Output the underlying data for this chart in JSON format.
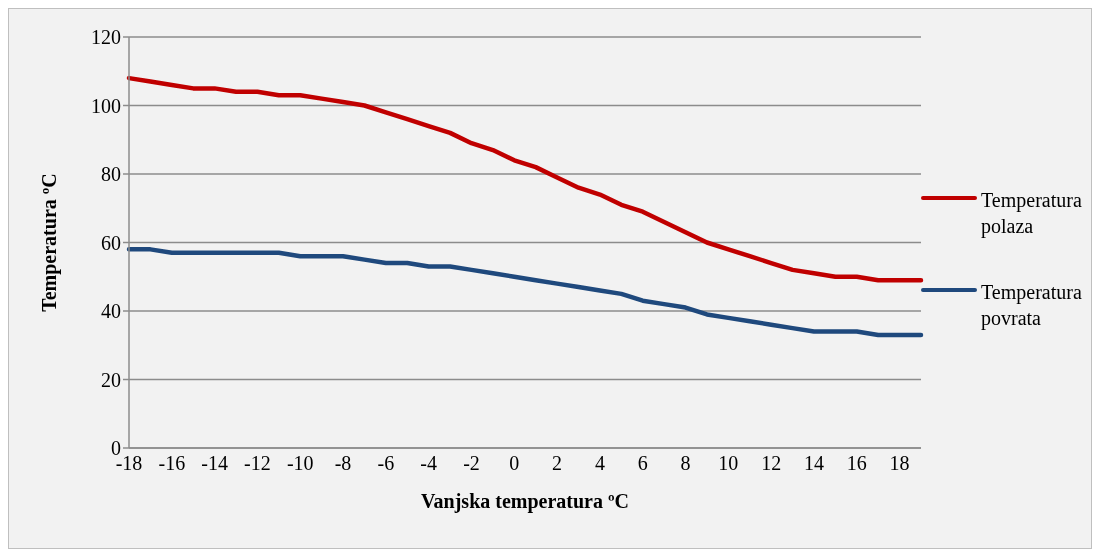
{
  "chart_data": {
    "type": "line",
    "xlabel": "Vanjska temperatura ºC",
    "ylabel": "Temperatura ºC",
    "categories": [
      "-18",
      null,
      "-16",
      null,
      "-14",
      null,
      "-12",
      null,
      "-10",
      null,
      "-8",
      null,
      "-6",
      null,
      "-4",
      null,
      "-2",
      null,
      "0",
      null,
      "2",
      null,
      "4",
      null,
      "6",
      null,
      "8",
      null,
      "10",
      null,
      "12",
      null,
      "14",
      null,
      "16",
      null,
      "18",
      null
    ],
    "series": [
      {
        "name": "Temperatura polaza",
        "color": "#c00000",
        "values": [
          108,
          107,
          106,
          105,
          105,
          104,
          104,
          103,
          103,
          102,
          101,
          100,
          98,
          96,
          94,
          92,
          89,
          87,
          84,
          82,
          79,
          76,
          74,
          71,
          69,
          66,
          63,
          60,
          58,
          56,
          54,
          52,
          51,
          50,
          50,
          49,
          49,
          49
        ]
      },
      {
        "name": "Temperatura povrata",
        "color": "#1f497d",
        "values": [
          58,
          58,
          57,
          57,
          57,
          57,
          57,
          57,
          56,
          56,
          56,
          55,
          54,
          54,
          53,
          53,
          52,
          51,
          50,
          49,
          48,
          47,
          46,
          45,
          43,
          42,
          41,
          39,
          38,
          37,
          36,
          35,
          34,
          34,
          34,
          33,
          33,
          33
        ]
      }
    ],
    "ylim": [
      0,
      120
    ],
    "yticks": [
      0,
      20,
      40,
      60,
      80,
      100,
      120
    ],
    "grid": "y",
    "legend": "right",
    "marker": "none",
    "line_style": "solid"
  }
}
